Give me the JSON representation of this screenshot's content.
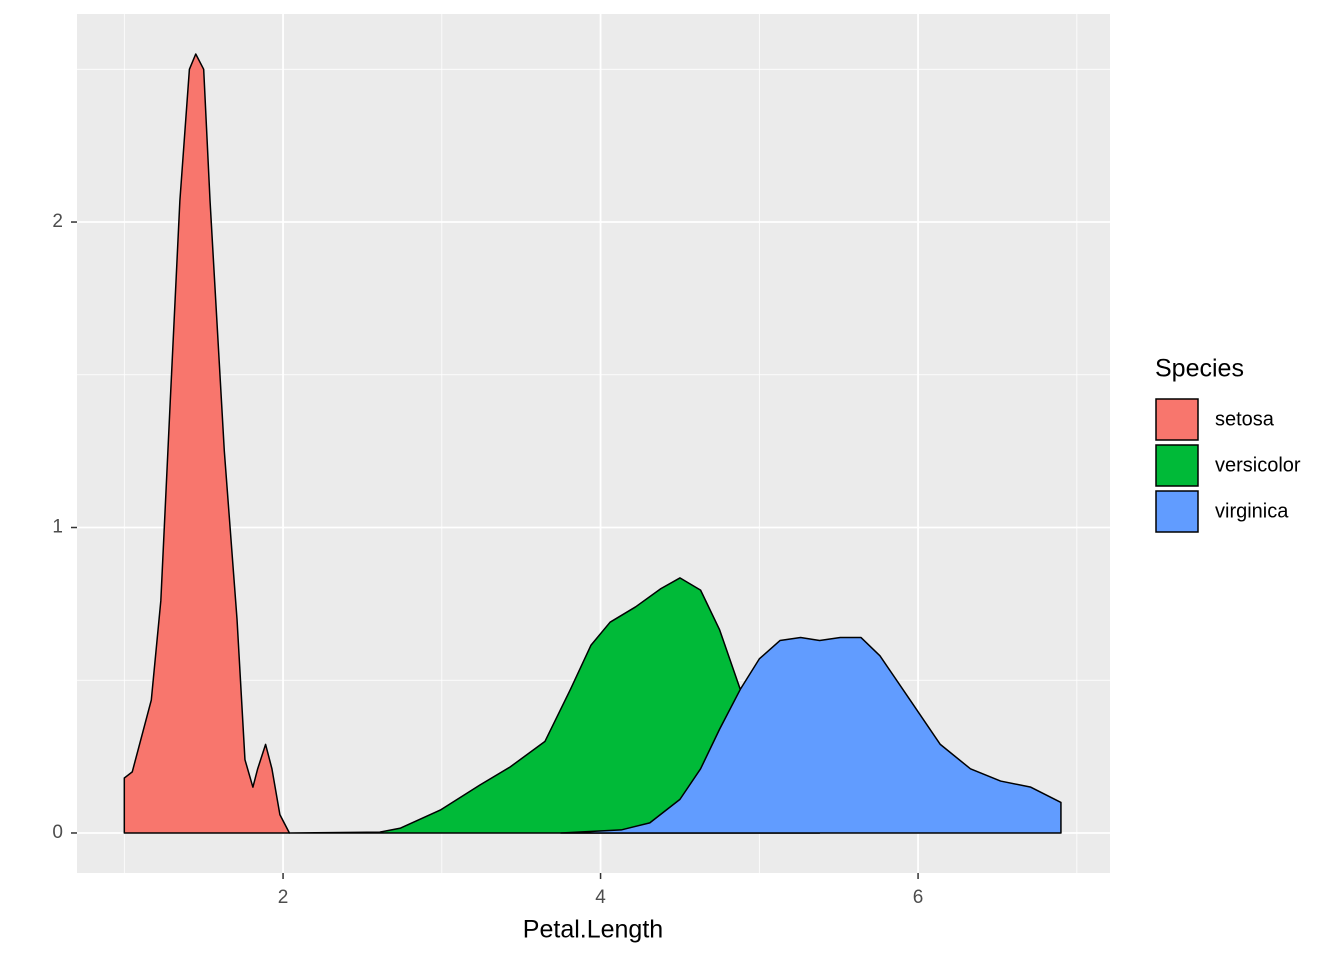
{
  "chart_data": {
    "type": "density",
    "x_label": "Petal.Length",
    "legend_title": "Species",
    "legend_position": "right",
    "grid": true,
    "xlim": [
      0.702,
      7.209
    ],
    "ylim": [
      -0.131,
      2.681
    ],
    "xticks": [
      2,
      4,
      6
    ],
    "yticks": [
      0,
      1,
      2
    ],
    "xminor": [
      1,
      3,
      5,
      7
    ],
    "yminor": [
      0.5,
      1.5,
      2.5
    ],
    "series": [
      {
        "name": "setosa",
        "color": "#F8766D",
        "x": [
          1.0,
          1.05,
          1.17,
          1.23,
          1.29,
          1.35,
          1.41,
          1.45,
          1.5,
          1.54,
          1.63,
          1.71,
          1.76,
          1.81,
          1.84,
          1.89,
          1.93,
          1.98,
          2.04
        ],
        "values": [
          0.18,
          0.2,
          0.435,
          0.76,
          1.42,
          2.07,
          2.5,
          2.55,
          2.5,
          2.07,
          1.25,
          0.7,
          0.24,
          0.15,
          0.21,
          0.29,
          0.21,
          0.06,
          0
        ]
      },
      {
        "name": "versicolor",
        "color": "#00BA38",
        "x": [
          2.04,
          2.61,
          2.74,
          2.99,
          3.24,
          3.43,
          3.65,
          3.81,
          3.94,
          4.06,
          4.22,
          4.38,
          4.5,
          4.63,
          4.75,
          4.88,
          5.0,
          5.13,
          5.26,
          5.38
        ],
        "values": [
          0,
          0.003,
          0.016,
          0.075,
          0.157,
          0.216,
          0.3,
          0.47,
          0.615,
          0.69,
          0.74,
          0.8,
          0.835,
          0.795,
          0.665,
          0.47,
          0.27,
          0.11,
          0.026,
          0
        ]
      },
      {
        "name": "virginica",
        "color": "#619CFF",
        "x": [
          3.75,
          4.13,
          4.31,
          4.5,
          4.63,
          4.75,
          4.88,
          5.0,
          5.13,
          5.26,
          5.38,
          5.51,
          5.64,
          5.76,
          5.95,
          6.14,
          6.33,
          6.52,
          6.71,
          6.9
        ],
        "values": [
          0,
          0.01,
          0.033,
          0.11,
          0.21,
          0.34,
          0.47,
          0.57,
          0.63,
          0.64,
          0.63,
          0.64,
          0.64,
          0.58,
          0.435,
          0.29,
          0.21,
          0.17,
          0.15,
          0.1
        ]
      }
    ]
  }
}
